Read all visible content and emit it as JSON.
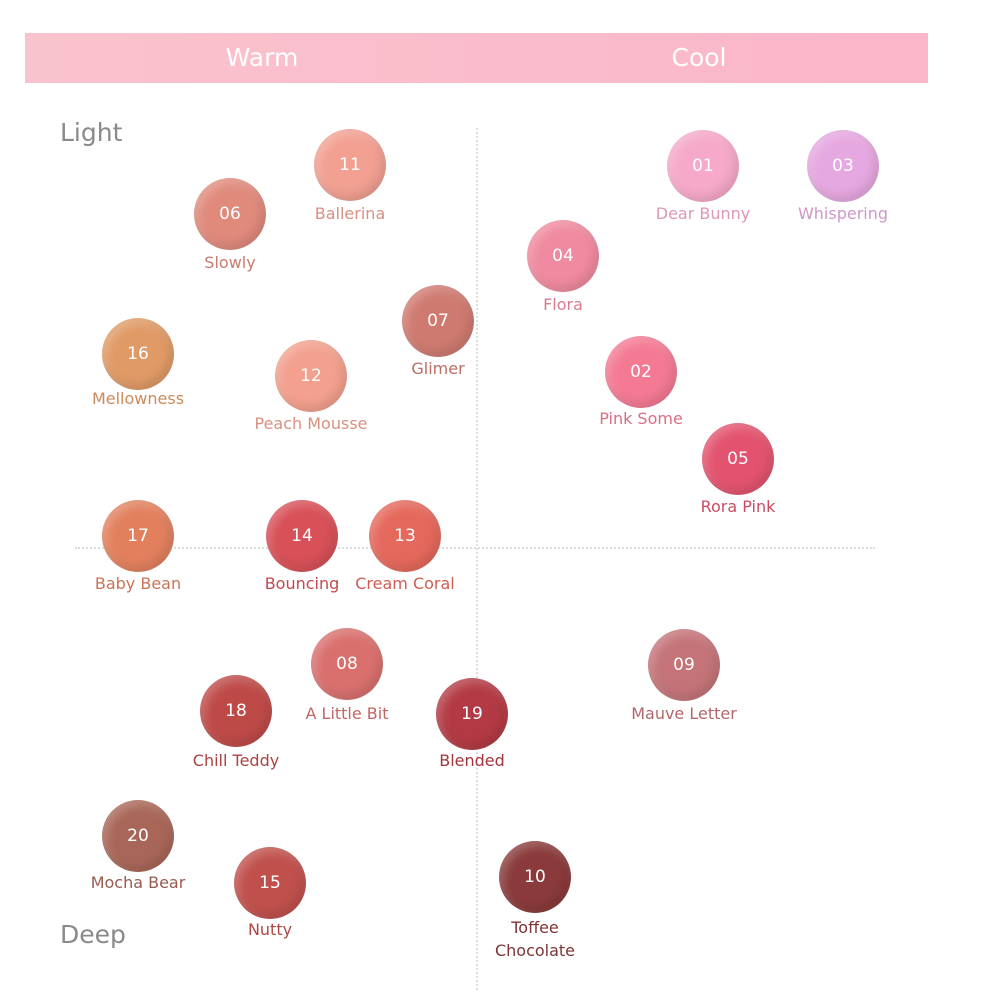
{
  "header": {
    "left": "Warm",
    "right": "Cool"
  },
  "axis": {
    "top": "Light",
    "bottom": "Deep"
  },
  "swatches": [
    {
      "number": "11",
      "name": "Ballerina",
      "color": "#f2a092"
    },
    {
      "number": "06",
      "name": "Slowly",
      "color": "#e08a7c"
    },
    {
      "number": "01",
      "name": "Dear Bunny",
      "color": "#f6a9c9"
    },
    {
      "number": "03",
      "name": "Whispering",
      "color": "#e6a8e0"
    },
    {
      "number": "04",
      "name": "Flora",
      "color": "#f08aa0"
    },
    {
      "number": "07",
      "name": "Glimer",
      "color": "#cf7a70"
    },
    {
      "number": "16",
      "name": "Mellowness",
      "color": "#e09a66"
    },
    {
      "number": "12",
      "name": "Peach Mousse",
      "color": "#f3a08e"
    },
    {
      "number": "02",
      "name": "Pink Some",
      "color": "#f47a94"
    },
    {
      "number": "05",
      "name": "Rora Pink",
      "color": "#e3536f"
    },
    {
      "number": "17",
      "name": "Baby Bean",
      "color": "#e2805e"
    },
    {
      "number": "14",
      "name": "Bouncing",
      "color": "#d85058"
    },
    {
      "number": "13",
      "name": "Cream Coral",
      "color": "#e5685c"
    },
    {
      "number": "08",
      "name": "A Little Bit",
      "color": "#d9706e"
    },
    {
      "number": "09",
      "name": "Mauve Letter",
      "color": "#c47479"
    },
    {
      "number": "18",
      "name": "Chill Teddy",
      "color": "#be4a48"
    },
    {
      "number": "19",
      "name": "Blended",
      "color": "#b33a44"
    },
    {
      "number": "20",
      "name": "Mocha Bear",
      "color": "#a86658"
    },
    {
      "number": "15",
      "name": "Nutty",
      "color": "#c0504c"
    },
    {
      "number": "10",
      "name": "Toffee Chocolate",
      "color": "#8a3a3a"
    }
  ]
}
